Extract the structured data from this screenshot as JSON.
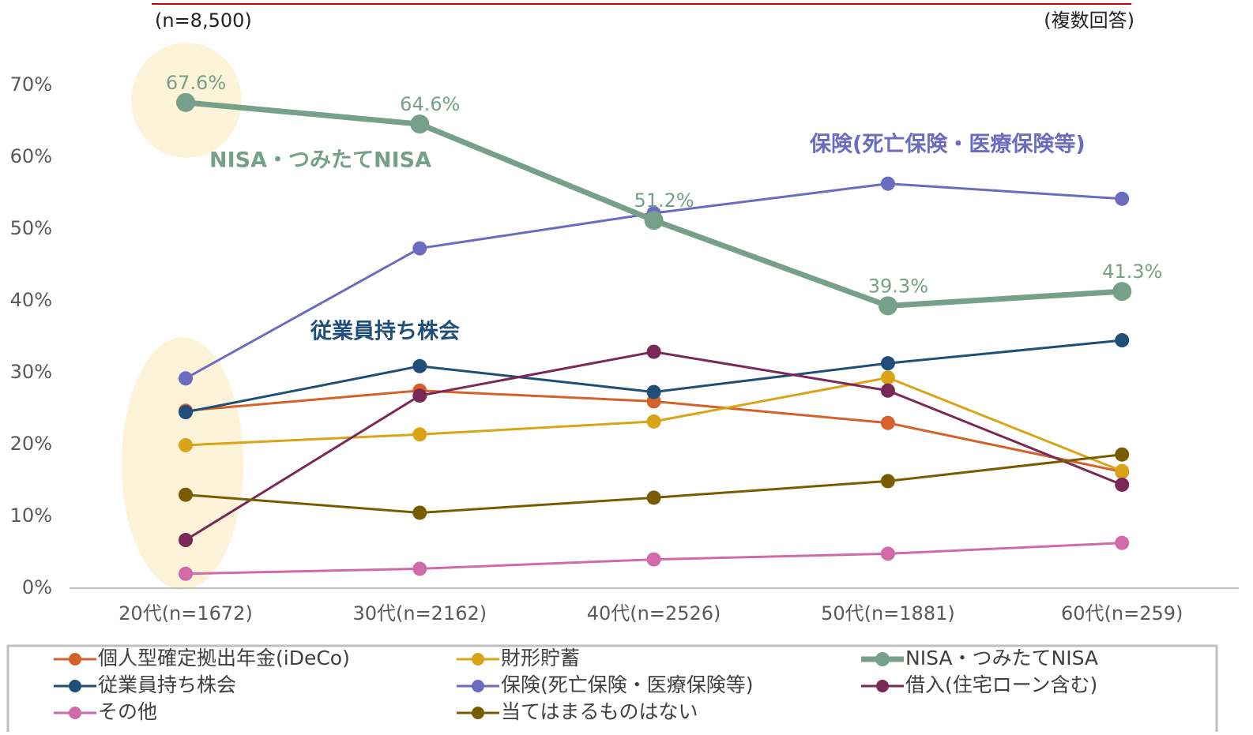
{
  "chart_data": {
    "type": "line",
    "annotations": [
      "(n=8,500)",
      "(複数回答)",
      "NISA・つみたてNISA",
      "保険(死亡保険・医療保険等)",
      "従業員持ち株会"
    ],
    "categories": [
      "20代(n=1672)",
      "30代(n=2162)",
      "40代(n=2526)",
      "50代(n=1881)",
      "60代(n=259)"
    ],
    "series": [
      {
        "name": "個人型確定拠出年金(iDeCo)",
        "color": "#d4622a",
        "values": [
          24.7,
          27.5,
          26.0,
          23.0,
          16.2
        ]
      },
      {
        "name": "財形貯蓄",
        "color": "#d9a516",
        "values": [
          19.9,
          21.4,
          23.2,
          29.3,
          16.3
        ]
      },
      {
        "name": "NISA・つみたてNISA",
        "color": "#76a08a",
        "values": [
          67.6,
          64.6,
          51.2,
          39.3,
          41.3
        ],
        "value_labels": [
          "67.6%",
          "64.6%",
          "51.2%",
          "39.3%",
          "41.3%"
        ]
      },
      {
        "name": "従業員持ち株会",
        "color": "#1f4e79",
        "values": [
          24.5,
          30.9,
          27.3,
          31.3,
          34.5
        ]
      },
      {
        "name": "保険(死亡保険・医療保険等)",
        "color": "#6b6bbf",
        "values": [
          29.2,
          47.3,
          52.2,
          56.3,
          54.2
        ]
      },
      {
        "name": "借入(住宅ローン含む)",
        "color": "#7a2856",
        "values": [
          6.7,
          26.8,
          32.9,
          27.5,
          14.4
        ]
      },
      {
        "name": "その他",
        "color": "#d16aa8",
        "values": [
          2.0,
          2.7,
          4.0,
          4.8,
          6.3
        ]
      },
      {
        "name": "当てはまるものはない",
        "color": "#7a5c00",
        "values": [
          13.0,
          10.5,
          12.6,
          14.9,
          18.6
        ]
      }
    ],
    "ylim": [
      0,
      70
    ],
    "yticks": [
      {
        "value": 0,
        "label": "0%"
      },
      {
        "value": 10,
        "label": "10%"
      },
      {
        "value": 20,
        "label": "20%"
      },
      {
        "value": 30,
        "label": "30%"
      },
      {
        "value": 40,
        "label": "40%"
      },
      {
        "value": 50,
        "label": "50%"
      },
      {
        "value": 60,
        "label": "60%"
      },
      {
        "value": 70,
        "label": "70%"
      }
    ],
    "grid": false
  }
}
